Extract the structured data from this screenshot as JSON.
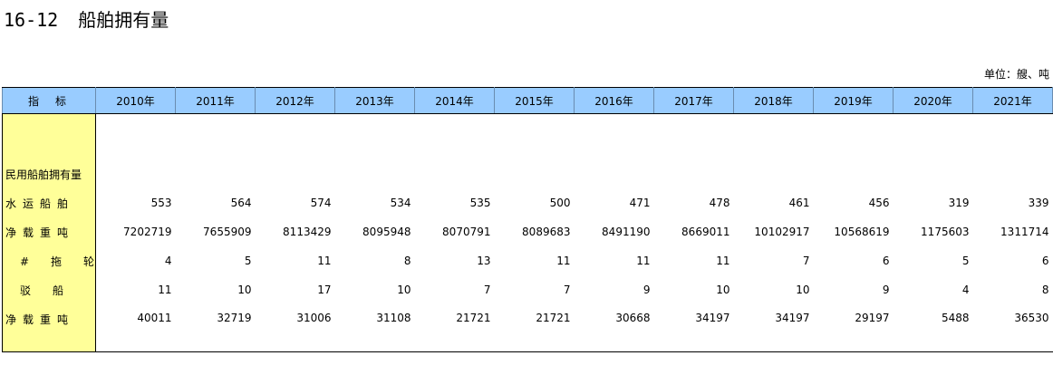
{
  "title": {
    "number": "16-12",
    "text": "船舶拥有量"
  },
  "unit": "单位：艘、吨",
  "table": {
    "indicator_header": "指标",
    "years": [
      "2010年",
      "2011年",
      "2012年",
      "2013年",
      "2014年",
      "2015年",
      "2016年",
      "2017年",
      "2018年",
      "2019年",
      "2020年",
      "2021年"
    ],
    "rows": [
      {
        "label": "民用船舶拥有量",
        "values": [
          "",
          "",
          "",
          "",
          "",
          "",
          "",
          "",
          "",
          "",
          "",
          ""
        ]
      },
      {
        "label": "水运船舶",
        "values": [
          "553",
          "564",
          "574",
          "534",
          "535",
          "500",
          "471",
          "478",
          "461",
          "456",
          "319",
          "339"
        ]
      },
      {
        "label": "净载重吨",
        "values": [
          "7202719",
          "7655909",
          "8113429",
          "8095948",
          "8070791",
          "8089683",
          "8491190",
          "8669011",
          "10102917",
          "10568619",
          "1175603",
          "1311714"
        ]
      },
      {
        "label": "#拖轮",
        "values": [
          "4",
          "5",
          "11",
          "8",
          "13",
          "11",
          "11",
          "11",
          "7",
          "6",
          "5",
          "6"
        ]
      },
      {
        "label": "驳船",
        "values": [
          "11",
          "10",
          "17",
          "10",
          "7",
          "7",
          "9",
          "10",
          "10",
          "9",
          "4",
          "8"
        ]
      },
      {
        "label": "净载重吨",
        "values": [
          "40011",
          "32719",
          "31006",
          "31108",
          "21721",
          "21721",
          "30668",
          "34197",
          "34197",
          "29197",
          "5488",
          "36530"
        ]
      }
    ]
  }
}
